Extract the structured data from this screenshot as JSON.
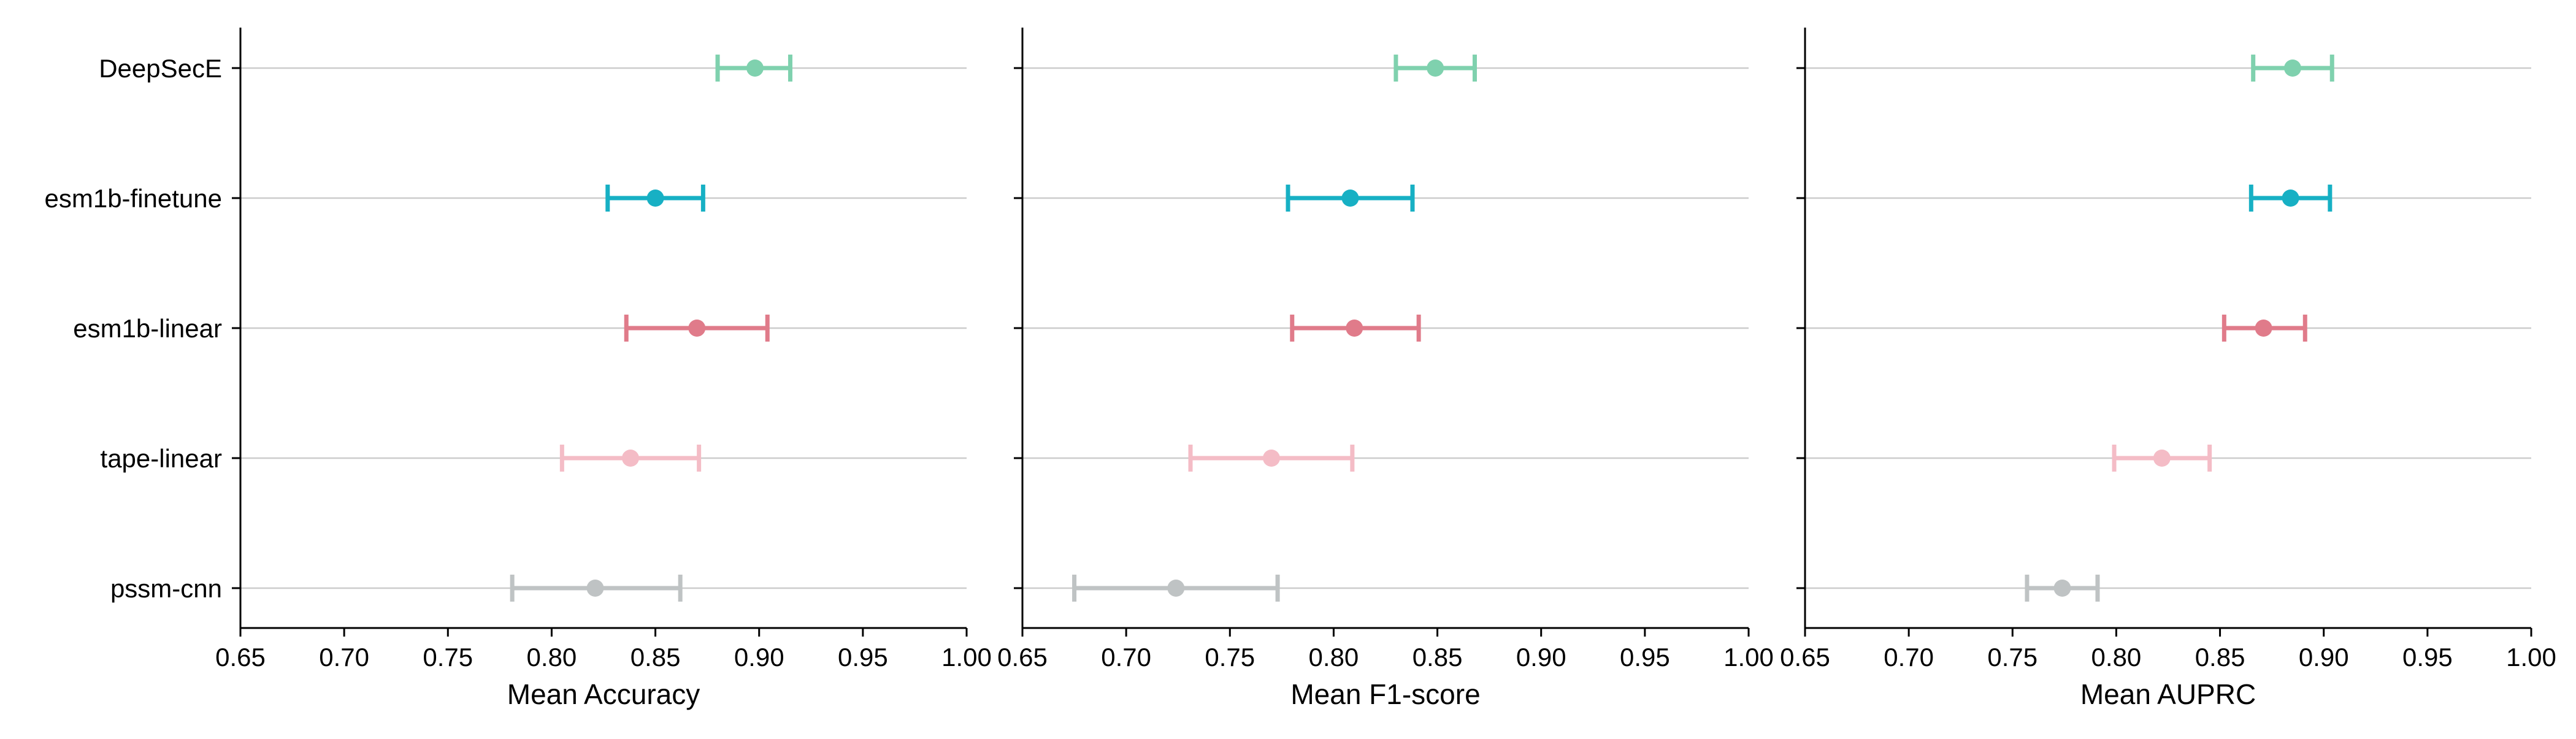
{
  "chart_data": {
    "type": "errorbar",
    "categories": [
      "DeepSecE",
      "esm1b-finetune",
      "esm1b-linear",
      "tape-linear",
      "pssm-cnn"
    ],
    "colors": {
      "DeepSecE": "#7fd1ae",
      "esm1b-finetune": "#17b0c4",
      "esm1b-linear": "#e07b8a",
      "tape-linear": "#f4bcc6",
      "pssm-cnn": "#bfc3c4"
    },
    "grid": "horizontal",
    "panels": [
      {
        "xlabel": "Mean Accuracy",
        "xlim": [
          0.65,
          1.0
        ],
        "xticks": [
          "0.65",
          "0.70",
          "0.75",
          "0.80",
          "0.85",
          "0.90",
          "0.95",
          "1.00"
        ],
        "points": [
          {
            "category": "DeepSecE",
            "mean": 0.898,
            "low": 0.88,
            "high": 0.915
          },
          {
            "category": "esm1b-finetune",
            "mean": 0.85,
            "low": 0.827,
            "high": 0.873
          },
          {
            "category": "esm1b-linear",
            "mean": 0.87,
            "low": 0.836,
            "high": 0.904
          },
          {
            "category": "tape-linear",
            "mean": 0.838,
            "low": 0.805,
            "high": 0.871
          },
          {
            "category": "pssm-cnn",
            "mean": 0.821,
            "low": 0.781,
            "high": 0.862
          }
        ]
      },
      {
        "xlabel": "Mean F1-score",
        "xlim": [
          0.65,
          1.0
        ],
        "xticks": [
          "0.65",
          "0.70",
          "0.75",
          "0.80",
          "0.85",
          "0.90",
          "0.95",
          "1.00"
        ],
        "points": [
          {
            "category": "DeepSecE",
            "mean": 0.849,
            "low": 0.83,
            "high": 0.868
          },
          {
            "category": "esm1b-finetune",
            "mean": 0.808,
            "low": 0.778,
            "high": 0.838
          },
          {
            "category": "esm1b-linear",
            "mean": 0.81,
            "low": 0.78,
            "high": 0.841
          },
          {
            "category": "tape-linear",
            "mean": 0.77,
            "low": 0.731,
            "high": 0.809
          },
          {
            "category": "pssm-cnn",
            "mean": 0.724,
            "low": 0.675,
            "high": 0.773
          }
        ]
      },
      {
        "xlabel": "Mean AUPRC",
        "xlim": [
          0.65,
          1.0
        ],
        "xticks": [
          "0.65",
          "0.70",
          "0.75",
          "0.80",
          "0.85",
          "0.90",
          "0.95",
          "1.00"
        ],
        "points": [
          {
            "category": "DeepSecE",
            "mean": 0.885,
            "low": 0.866,
            "high": 0.904
          },
          {
            "category": "esm1b-finetune",
            "mean": 0.884,
            "low": 0.865,
            "high": 0.903
          },
          {
            "category": "esm1b-linear",
            "mean": 0.871,
            "low": 0.852,
            "high": 0.891
          },
          {
            "category": "tape-linear",
            "mean": 0.822,
            "low": 0.799,
            "high": 0.845
          },
          {
            "category": "pssm-cnn",
            "mean": 0.774,
            "low": 0.757,
            "high": 0.791
          }
        ]
      }
    ]
  }
}
